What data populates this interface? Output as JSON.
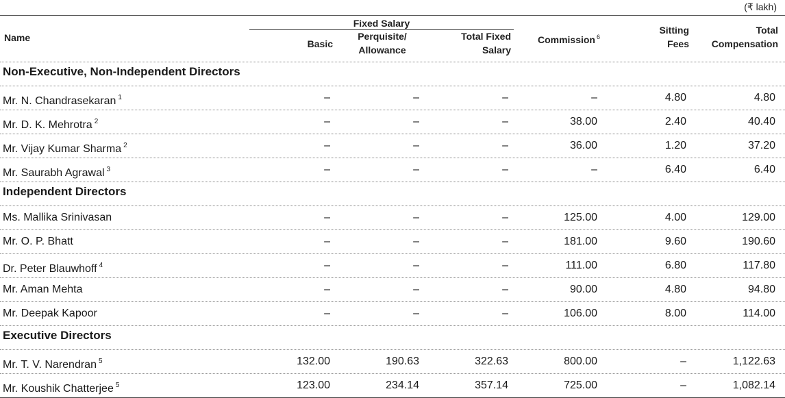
{
  "unit": "(₹ lakh)",
  "header": {
    "name": "Name",
    "fixed_salary": "Fixed Salary",
    "basic": "Basic",
    "perquisite": "Perquisite/",
    "allowance": "Allowance",
    "total_fixed_1": "Total Fixed",
    "total_fixed_2": "Salary",
    "commission": "Commission",
    "commission_note": "6",
    "sitting_1": "Sitting",
    "sitting_2": "Fees",
    "total_comp_1": "Total",
    "total_comp_2": "Compensation"
  },
  "sections": [
    {
      "title": "Non-Executive, Non-Independent Directors",
      "rows": [
        {
          "name": "Mr. N. Chandrasekaran",
          "note": "1",
          "basic": "–",
          "perquisite": "–",
          "total_fixed": "–",
          "commission": "–",
          "sitting_fees": "4.80",
          "total": "4.80"
        },
        {
          "name": "Mr. D. K. Mehrotra",
          "note": "2",
          "basic": "–",
          "perquisite": "–",
          "total_fixed": "–",
          "commission": "38.00",
          "sitting_fees": "2.40",
          "total": "40.40"
        },
        {
          "name": "Mr. Vijay Kumar Sharma",
          "note": "2",
          "basic": "–",
          "perquisite": "–",
          "total_fixed": "–",
          "commission": "36.00",
          "sitting_fees": "1.20",
          "total": "37.20"
        },
        {
          "name": "Mr. Saurabh Agrawal",
          "note": "3",
          "basic": "–",
          "perquisite": "–",
          "total_fixed": "–",
          "commission": "–",
          "sitting_fees": "6.40",
          "total": "6.40"
        }
      ]
    },
    {
      "title": "Independent Directors",
      "rows": [
        {
          "name": "Ms. Mallika Srinivasan",
          "note": "",
          "basic": "–",
          "perquisite": "–",
          "total_fixed": "–",
          "commission": "125.00",
          "sitting_fees": "4.00",
          "total": "129.00"
        },
        {
          "name": "Mr. O. P. Bhatt",
          "note": "",
          "basic": "–",
          "perquisite": "–",
          "total_fixed": "–",
          "commission": "181.00",
          "sitting_fees": "9.60",
          "total": "190.60"
        },
        {
          "name": "Dr. Peter Blauwhoff",
          "note": "4",
          "basic": "–",
          "perquisite": "–",
          "total_fixed": "–",
          "commission": "111.00",
          "sitting_fees": "6.80",
          "total": "117.80"
        },
        {
          "name": "Mr. Aman Mehta",
          "note": "",
          "basic": "–",
          "perquisite": "–",
          "total_fixed": "–",
          "commission": "90.00",
          "sitting_fees": "4.80",
          "total": "94.80"
        },
        {
          "name": "Mr. Deepak Kapoor",
          "note": "",
          "basic": "–",
          "perquisite": "–",
          "total_fixed": "–",
          "commission": "106.00",
          "sitting_fees": "8.00",
          "total": "114.00"
        }
      ]
    },
    {
      "title": "Executive Directors",
      "rows": [
        {
          "name": "Mr. T. V. Narendran",
          "note": "5",
          "basic": "132.00",
          "perquisite": "190.63",
          "total_fixed": "322.63",
          "commission": "800.00",
          "sitting_fees": "–",
          "total": "1,122.63"
        },
        {
          "name": "Mr. Koushik Chatterjee",
          "note": "5",
          "basic": "123.00",
          "perquisite": "234.14",
          "total_fixed": "357.14",
          "commission": "725.00",
          "sitting_fees": "–",
          "total": "1,082.14"
        }
      ]
    }
  ]
}
